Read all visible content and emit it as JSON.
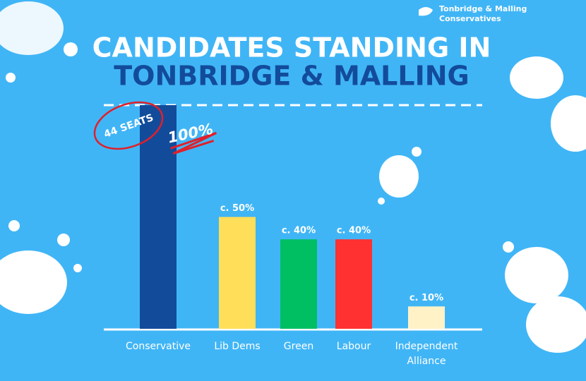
{
  "chart_data": {
    "type": "bar",
    "title": [
      "CANDIDATES STANDING IN",
      "TONBRIDGE & MALLING"
    ],
    "logo_text": [
      "Tonbridge & Malling",
      "Conservatives"
    ],
    "annotation": "44 SEATS",
    "categories": [
      "Conservative",
      "Lib Dems",
      "Green",
      "Labour",
      "Independent Alliance"
    ],
    "values": [
      100,
      50,
      40,
      40,
      10
    ],
    "value_labels": [
      "100%",
      "c. 50%",
      "c. 40%",
      "c. 40%",
      "c. 10%"
    ],
    "colors": [
      "#134b9b",
      "#ffde59",
      "#00bf63",
      "#ff3131",
      "#fff2c7"
    ]
  }
}
